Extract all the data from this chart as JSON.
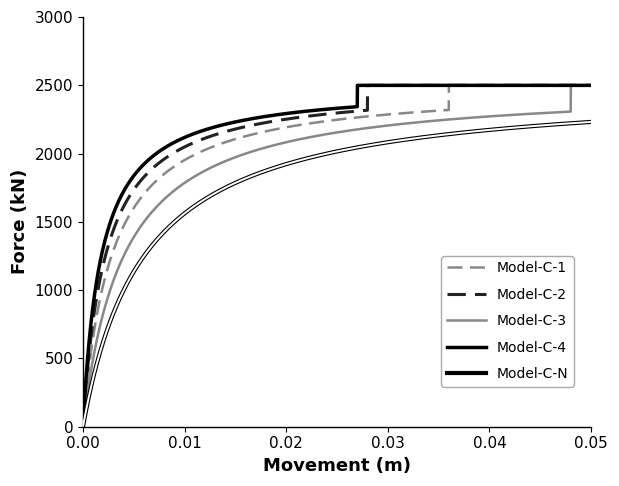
{
  "title": "",
  "xlabel": "Movement (m)",
  "ylabel": "Force (kN)",
  "xlim": [
    0,
    0.05
  ],
  "ylim": [
    0,
    3000
  ],
  "xticks": [
    0,
    0.01,
    0.02,
    0.03,
    0.04,
    0.05
  ],
  "yticks": [
    0,
    500,
    1000,
    1500,
    2000,
    2500,
    3000
  ],
  "max_force": 2500,
  "curves": [
    {
      "name": "Model-C-1",
      "color": "#888888",
      "linestyle": "dashed",
      "linewidth": 1.8,
      "a": 0.0028,
      "x_plateau": 0.036
    },
    {
      "name": "Model-C-2",
      "color": "#222222",
      "linestyle": "dashed",
      "linewidth": 2.2,
      "a": 0.0022,
      "x_plateau": 0.028
    },
    {
      "name": "Model-C-3",
      "color": "#888888",
      "linestyle": "solid",
      "linewidth": 1.8,
      "a": 0.004,
      "x_plateau": 0.048
    },
    {
      "name": "Model-C-4",
      "color": "#000000",
      "linestyle": "solid",
      "linewidth": 2.5,
      "a": 0.0018,
      "x_plateau": 0.027
    },
    {
      "name": "Model-C-N",
      "color": "#000000",
      "linestyle": "solid",
      "linewidth": 0.8,
      "a": 0.006,
      "x_plateau": 0.05
    }
  ],
  "background_color": "#ffffff",
  "xlabel_fontsize": 13,
  "ylabel_fontsize": 13,
  "tick_fontsize": 11
}
